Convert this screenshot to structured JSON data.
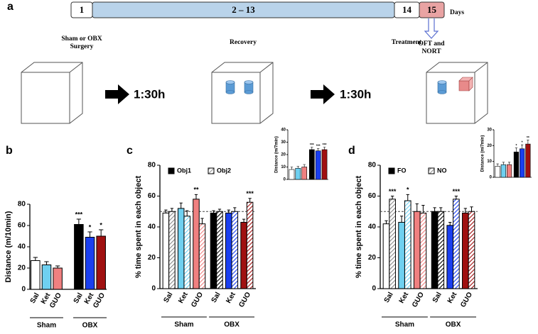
{
  "panel_labels": [
    "a",
    "b",
    "c",
    "d"
  ],
  "timeline": {
    "steps": [
      {
        "label": "1",
        "color": "#ffffff",
        "caption": [
          "Sham or OBX",
          "Surgery"
        ]
      },
      {
        "label": "2 – 13",
        "color": "#b9d3ea",
        "caption": [
          "Recovery"
        ]
      },
      {
        "label": "14",
        "color": "#ffffff",
        "caption": [
          "Treatment"
        ]
      },
      {
        "label": "15",
        "color": "#e9a3a3",
        "caption": [
          "OFT and",
          "NORT"
        ]
      }
    ],
    "days_label": "Days"
  },
  "protocol": {
    "intervals": [
      "1:30h",
      "1:30h"
    ]
  },
  "chart_data": [
    {
      "type": "bar",
      "ylabel": "Distance (m/10min)",
      "categories": [
        "Sal",
        "Ket",
        "GUO",
        "Sal",
        "Ket",
        "GUO"
      ],
      "groups": [
        "Sham",
        "OBX"
      ],
      "values": [
        27,
        23,
        20,
        61,
        49,
        50
      ],
      "errors": [
        3,
        3,
        2,
        5,
        5,
        6
      ],
      "colors": [
        "#ffffff",
        "#6fd0f0",
        "#f08080",
        "#000000",
        "#1a3ff0",
        "#a01010"
      ],
      "significance": [
        null,
        null,
        null,
        "***",
        "*",
        "*"
      ],
      "ylim": [
        0,
        80
      ],
      "yticks": [
        0,
        20,
        40,
        60,
        80
      ]
    },
    {
      "type": "bar",
      "ylabel": "% time spent in each object",
      "categories": [
        "Sal",
        "Ket",
        "GUO",
        "Sal",
        "Ket",
        "GUO"
      ],
      "groups": [
        "Sham",
        "OBX"
      ],
      "colors": [
        "#ffffff",
        "#6fd0f0",
        "#f08080",
        "#000000",
        "#1a3ff0",
        "#a01010"
      ],
      "series": [
        {
          "name": "Obj1",
          "color": "#000000",
          "hatch": false,
          "values": [
            49,
            52,
            58,
            49,
            49,
            43
          ],
          "errors": [
            2,
            3.5,
            3,
            1.5,
            2,
            2
          ],
          "significance": [
            null,
            null,
            "**",
            null,
            null,
            null
          ]
        },
        {
          "name": "Obj2",
          "color": "#999999",
          "hatch": true,
          "values": [
            50,
            47,
            42,
            50,
            50,
            56
          ],
          "errors": [
            2,
            3.5,
            3.5,
            1.5,
            2.5,
            2.5
          ],
          "significance": [
            null,
            null,
            null,
            null,
            null,
            "***"
          ]
        }
      ],
      "reference_line": 50,
      "ylim": [
        0,
        80
      ],
      "yticks": [
        0,
        20,
        40,
        60,
        80
      ]
    },
    {
      "type": "bar",
      "ylabel": "Distance (m/7min)",
      "values": [
        8,
        9,
        10,
        24,
        23,
        24
      ],
      "errors": [
        2,
        1.5,
        2,
        2,
        2,
        2
      ],
      "colors": [
        "#ffffff",
        "#6fd0f0",
        "#f08080",
        "#000000",
        "#1a3ff0",
        "#a01010"
      ],
      "significance": [
        null,
        null,
        null,
        "***",
        "***",
        "***"
      ],
      "ylim": [
        0,
        40
      ],
      "yticks": [
        0,
        10,
        20,
        30,
        40
      ]
    },
    {
      "type": "bar",
      "ylabel": "% time spent in each object",
      "categories": [
        "Sal",
        "Ket",
        "GUO",
        "Sal",
        "Ket",
        "GUO"
      ],
      "groups": [
        "Sham",
        "OBX"
      ],
      "colors": [
        "#ffffff",
        "#6fd0f0",
        "#f08080",
        "#000000",
        "#1a3ff0",
        "#a01010"
      ],
      "series": [
        {
          "name": "FO",
          "color": "#000000",
          "hatch": false,
          "values": [
            42,
            43,
            50,
            50,
            41,
            49
          ],
          "errors": [
            2,
            4,
            5,
            2.5,
            2,
            3
          ],
          "significance": [
            null,
            null,
            null,
            null,
            null,
            null
          ]
        },
        {
          "name": "NO",
          "color": "#999999",
          "hatch": true,
          "values": [
            58,
            57,
            49,
            50,
            58,
            50
          ],
          "errors": [
            2,
            4,
            5,
            2.5,
            2,
            3
          ],
          "significance": [
            "***",
            "*",
            null,
            null,
            "***",
            null
          ]
        }
      ],
      "reference_line": 50,
      "ylim": [
        0,
        80
      ],
      "yticks": [
        0,
        20,
        40,
        60,
        80
      ]
    },
    {
      "type": "bar",
      "ylabel": "Distance (m/7min)",
      "values": [
        7,
        8,
        8,
        16,
        18,
        21
      ],
      "errors": [
        1.5,
        1.5,
        1.5,
        2.5,
        2.5,
        2.5
      ],
      "colors": [
        "#ffffff",
        "#6fd0f0",
        "#f08080",
        "#000000",
        "#1a3ff0",
        "#a01010"
      ],
      "significance": [
        null,
        null,
        null,
        "*",
        "*",
        "**"
      ],
      "ylim": [
        0,
        30
      ],
      "yticks": [
        0,
        10,
        20,
        30
      ]
    }
  ]
}
